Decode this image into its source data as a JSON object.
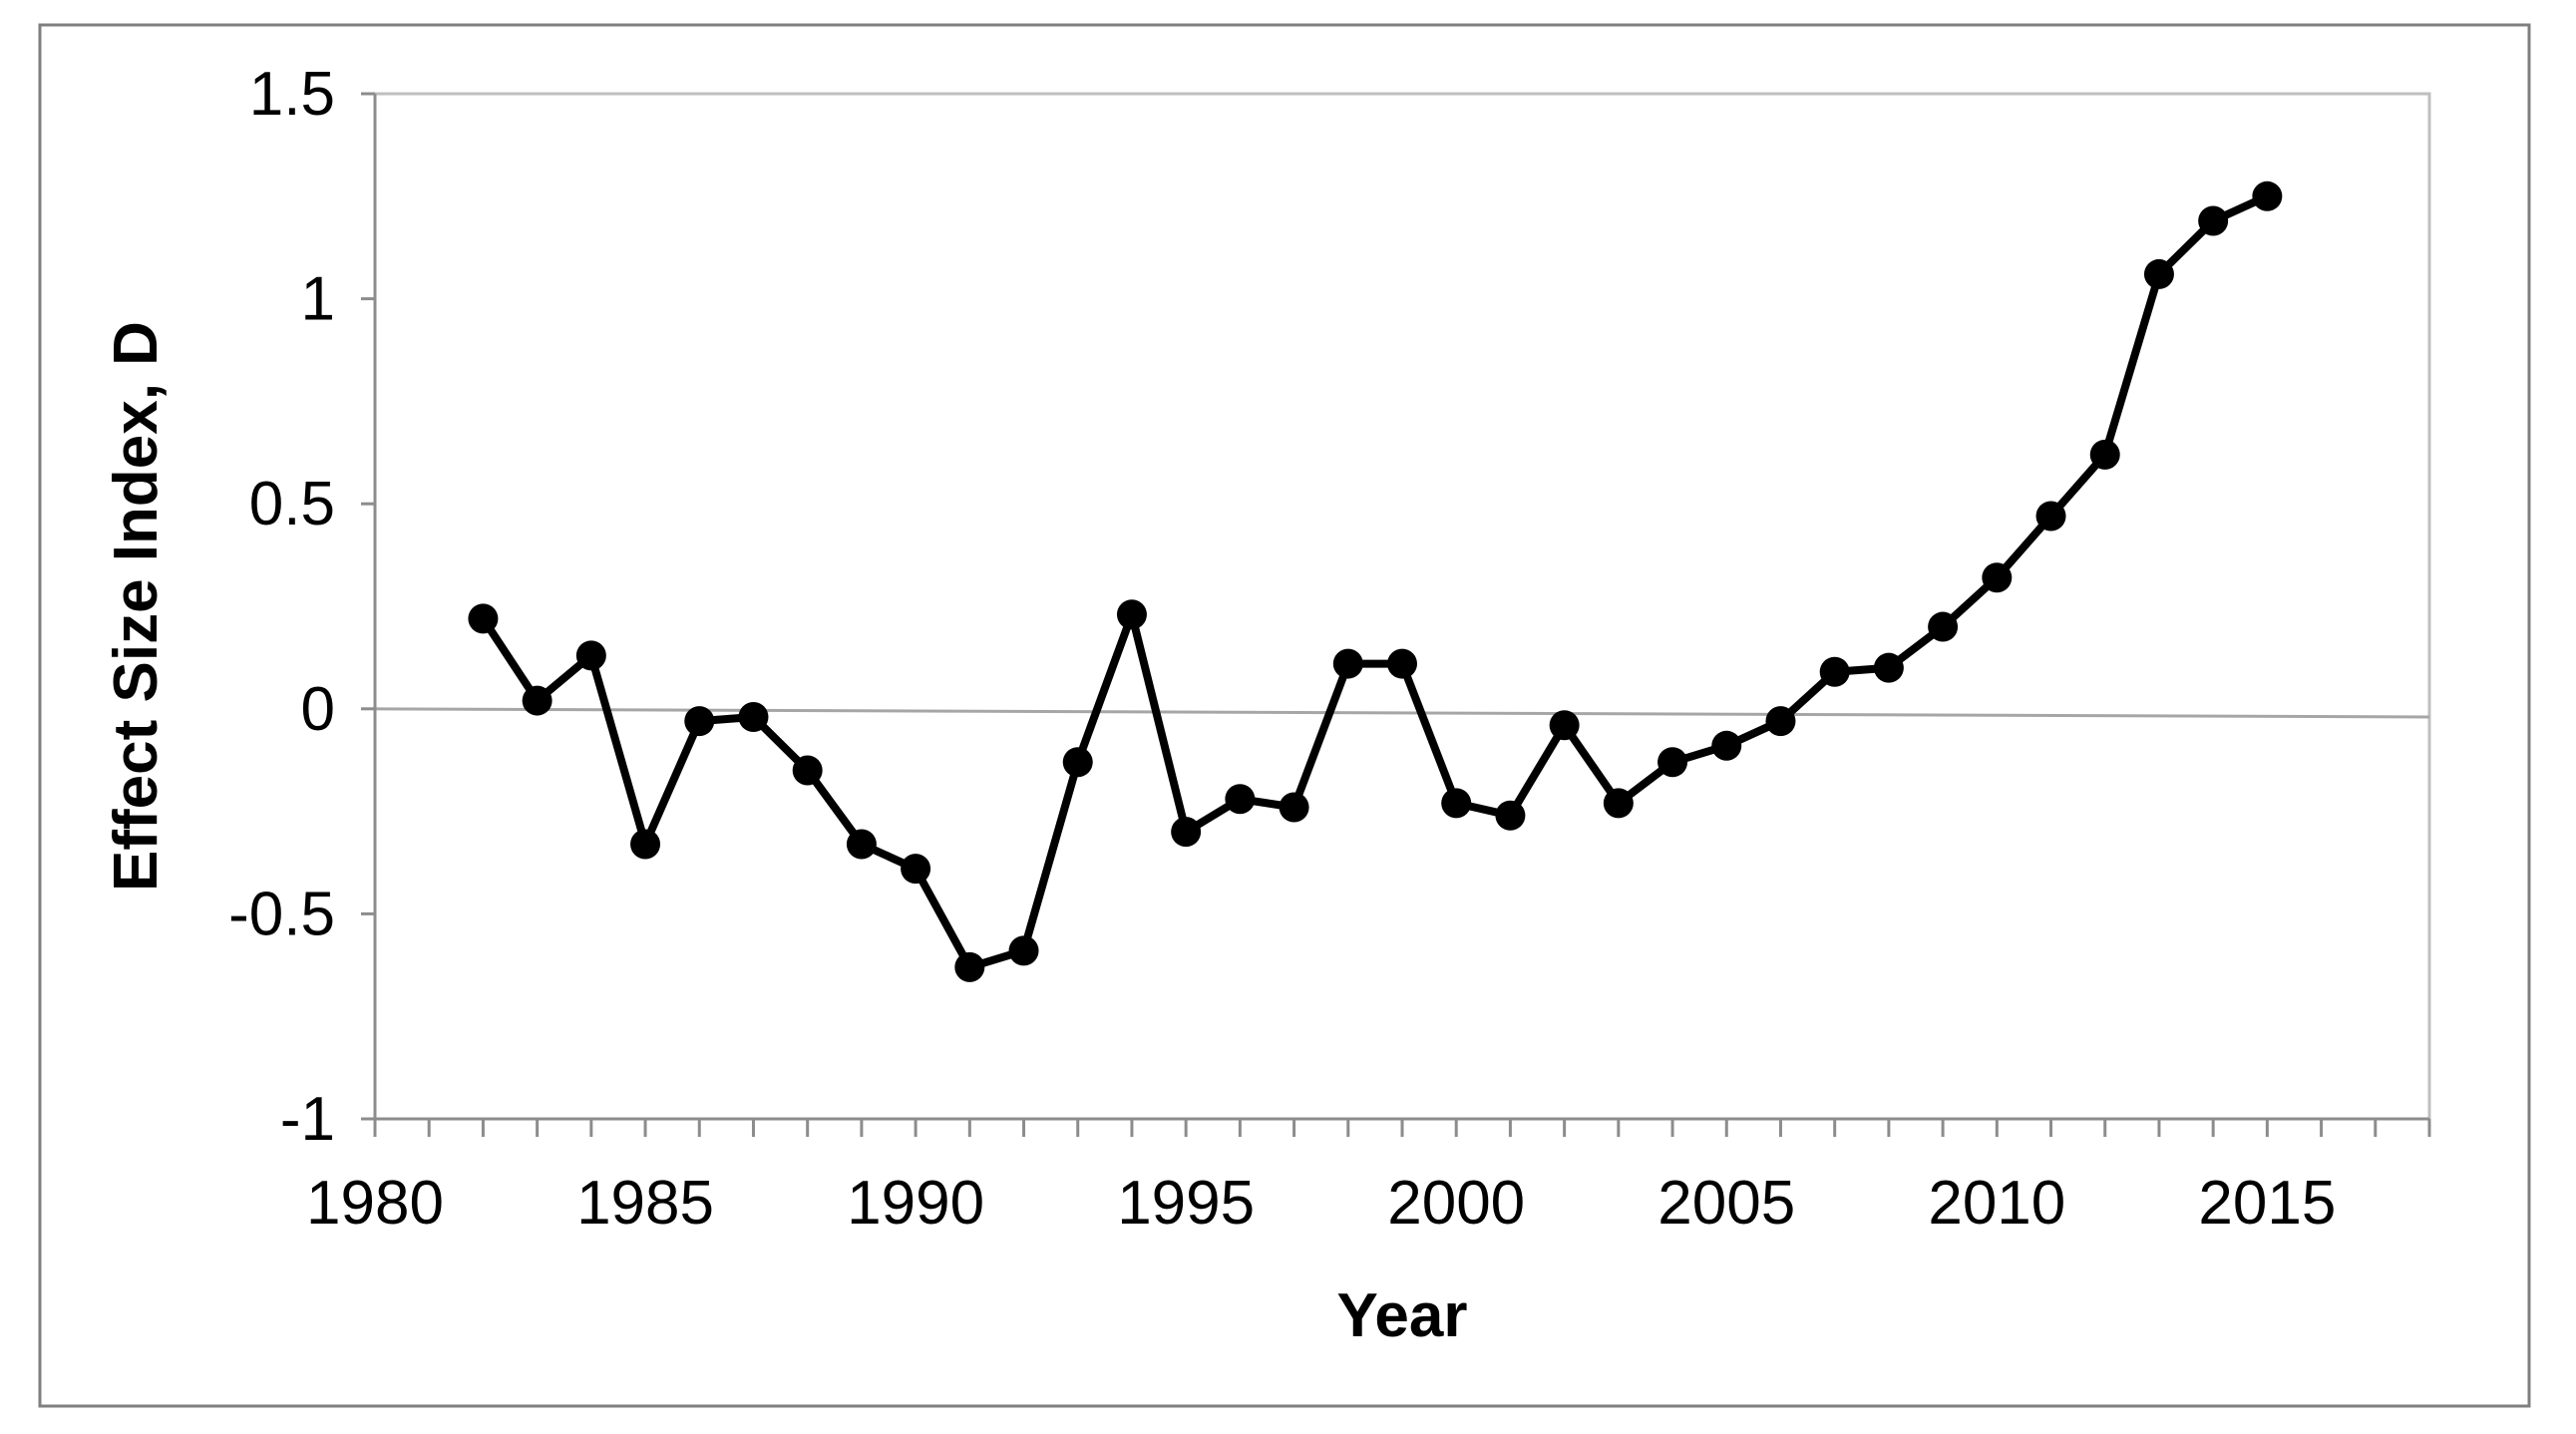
{
  "chart_data": {
    "type": "line",
    "title": "",
    "xlabel": "Year",
    "ylabel": "Effect Size Index, D",
    "xlim": [
      1980,
      2018
    ],
    "ylim": [
      -1,
      1.5
    ],
    "x_ticks": [
      1980,
      1985,
      1990,
      1995,
      2000,
      2005,
      2010,
      2015
    ],
    "x_tick_labels": [
      "1980",
      "1985",
      "1990",
      "1995",
      "2000",
      "2005",
      "2010",
      "2015"
    ],
    "y_ticks": [
      -1,
      -0.5,
      0,
      0.5,
      1,
      1.5
    ],
    "y_tick_labels": [
      "-1",
      "-0.5",
      "0",
      "0.5",
      "1",
      "1.5"
    ],
    "grid": false,
    "legend": "none",
    "series": [
      {
        "color": "#000000",
        "marker": "circle",
        "x": [
          1982,
          1983,
          1984,
          1985,
          1986,
          1987,
          1988,
          1989,
          1990,
          1991,
          1992,
          1993,
          1994,
          1995,
          1996,
          1997,
          1998,
          1999,
          2000,
          2001,
          2002,
          2003,
          2004,
          2005,
          2006,
          2007,
          2008,
          2009,
          2010,
          2011,
          2012,
          2013,
          2014,
          2015
        ],
        "values": [
          0.22,
          0.02,
          0.13,
          -0.33,
          -0.03,
          -0.02,
          -0.15,
          -0.33,
          -0.39,
          -0.63,
          -0.59,
          -0.13,
          0.23,
          -0.3,
          -0.22,
          -0.24,
          0.11,
          0.11,
          -0.23,
          -0.26,
          -0.04,
          -0.23,
          -0.13,
          -0.09,
          -0.03,
          0.09,
          0.1,
          0.2,
          0.32,
          0.47,
          0.62,
          1.06,
          1.19,
          1.25
        ]
      }
    ],
    "trend_line": {
      "color": "#a6a6a6",
      "x": [
        1980,
        2018
      ],
      "values": [
        0.0,
        -0.02
      ]
    }
  }
}
